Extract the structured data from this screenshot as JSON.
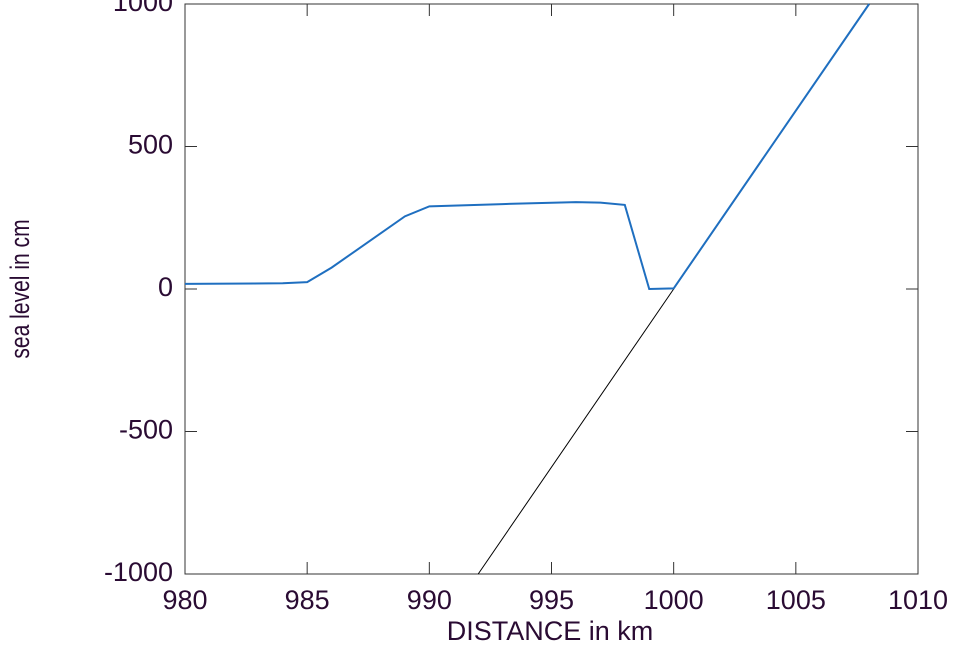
{
  "chart_data": {
    "type": "line",
    "xlabel": "DISTANCE in km",
    "ylabel": "sea level in cm",
    "xlim": [
      980,
      1010
    ],
    "ylim": [
      -1000,
      1000
    ],
    "xticks": [
      980,
      985,
      990,
      995,
      1000,
      1005,
      1010
    ],
    "yticks": [
      -1000,
      -500,
      0,
      500,
      1000
    ],
    "series": [
      {
        "color": "#000000",
        "x": [
          992,
          1000,
          1008
        ],
        "values": [
          -1000,
          0,
          1000
        ]
      },
      {
        "color": "#1f6fc0",
        "x": [
          980,
          984,
          985,
          986,
          987,
          988,
          989,
          990,
          993,
          996,
          997,
          998,
          999,
          1000,
          1008
        ],
        "values": [
          18,
          20,
          24,
          75,
          135,
          195,
          255,
          290,
          298,
          305,
          303,
          295,
          0,
          2,
          1000
        ]
      }
    ]
  }
}
